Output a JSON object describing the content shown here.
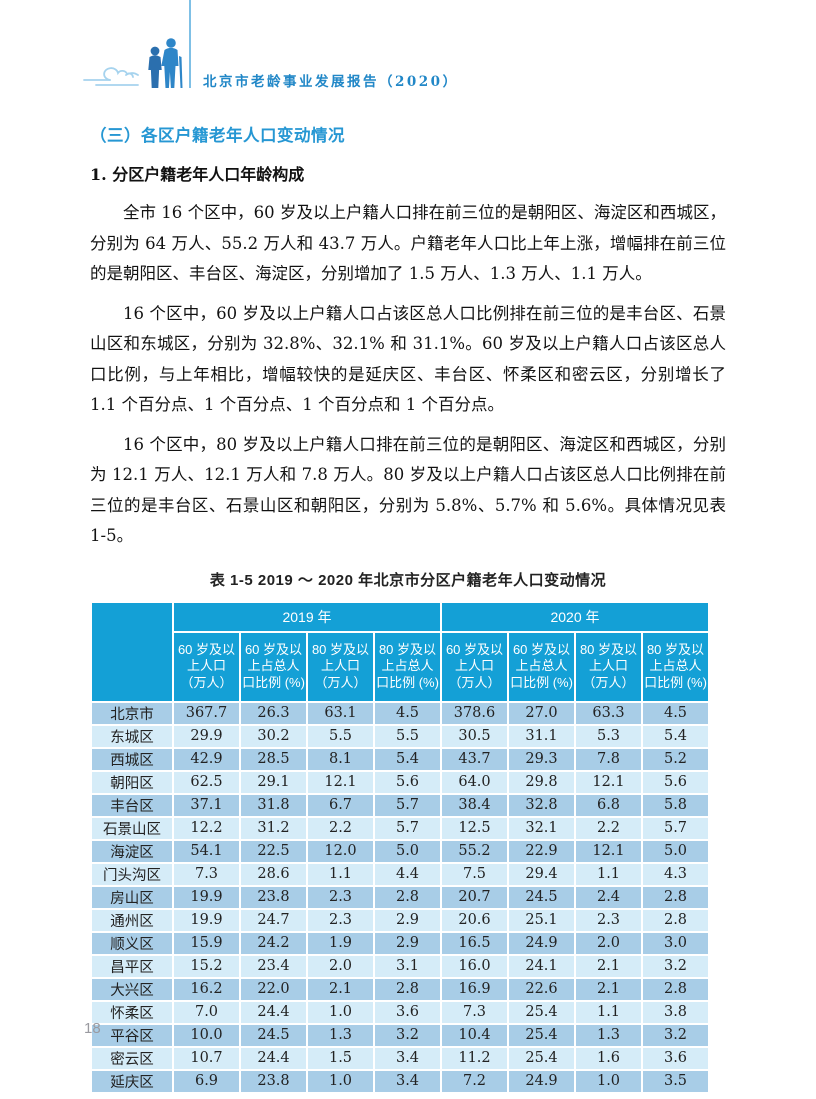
{
  "header": {
    "report_title": "北京市老龄事业发展报告（2020）"
  },
  "content": {
    "section_heading": "（三）各区户籍老年人口变动情况",
    "sub_heading": "1. 分区户籍老年人口年龄构成",
    "paragraphs": {
      "p1": "全市 16 个区中，60 岁及以上户籍人口排在前三位的是朝阳区、海淀区和西城区，分别为 64 万人、55.2 万人和 43.7 万人。户籍老年人口比上年上涨，增幅排在前三位的是朝阳区、丰台区、海淀区，分别增加了 1.5 万人、1.3 万人、1.1 万人。",
      "p2": "16 个区中，60 岁及以上户籍人口占该区总人口比例排在前三位的是丰台区、石景山区和东城区，分别为 32.8%、32.1% 和 31.1%。60 岁及以上户籍人口占该区总人口比例，与上年相比，增幅较快的是延庆区、丰台区、怀柔区和密云区，分别增长了 1.1 个百分点、1 个百分点、1 个百分点和 1 个百分点。",
      "p3": "16 个区中，80 岁及以上户籍人口排在前三位的是朝阳区、海淀区和西城区，分别为 12.1 万人、12.1 万人和 7.8 万人。80 岁及以上户籍人口占该区总人口比例排在前三位的是丰台区、石景山区和朝阳区，分别为 5.8%、5.7% 和 5.6%。具体情况见表 1-5。"
    }
  },
  "table": {
    "caption": "表 1-5  2019 ～ 2020 年北京市分区户籍老年人口变动情况",
    "year_groups": {
      "y2019": "2019 年",
      "y2020": "2020 年"
    },
    "sub_headers": [
      "60 岁及以上人口（万人）",
      "60 岁及以上占总人口比例 (%)",
      "80 岁及以上人口（万人）",
      "80 岁及以上占总人口比例 (%)"
    ],
    "rows": [
      {
        "name": "北京市",
        "values": [
          "367.7",
          "26.3",
          "63.1",
          "4.5",
          "378.6",
          "27.0",
          "63.3",
          "4.5"
        ]
      },
      {
        "name": "东城区",
        "values": [
          "29.9",
          "30.2",
          "5.5",
          "5.5",
          "30.5",
          "31.1",
          "5.3",
          "5.4"
        ]
      },
      {
        "name": "西城区",
        "values": [
          "42.9",
          "28.5",
          "8.1",
          "5.4",
          "43.7",
          "29.3",
          "7.8",
          "5.2"
        ]
      },
      {
        "name": "朝阳区",
        "values": [
          "62.5",
          "29.1",
          "12.1",
          "5.6",
          "64.0",
          "29.8",
          "12.1",
          "5.6"
        ]
      },
      {
        "name": "丰台区",
        "values": [
          "37.1",
          "31.8",
          "6.7",
          "5.7",
          "38.4",
          "32.8",
          "6.8",
          "5.8"
        ]
      },
      {
        "name": "石景山区",
        "values": [
          "12.2",
          "31.2",
          "2.2",
          "5.7",
          "12.5",
          "32.1",
          "2.2",
          "5.7"
        ]
      },
      {
        "name": "海淀区",
        "values": [
          "54.1",
          "22.5",
          "12.0",
          "5.0",
          "55.2",
          "22.9",
          "12.1",
          "5.0"
        ]
      },
      {
        "name": "门头沟区",
        "values": [
          "7.3",
          "28.6",
          "1.1",
          "4.4",
          "7.5",
          "29.4",
          "1.1",
          "4.3"
        ]
      },
      {
        "name": "房山区",
        "values": [
          "19.9",
          "23.8",
          "2.3",
          "2.8",
          "20.7",
          "24.5",
          "2.4",
          "2.8"
        ]
      },
      {
        "name": "通州区",
        "values": [
          "19.9",
          "24.7",
          "2.3",
          "2.9",
          "20.6",
          "25.1",
          "2.3",
          "2.8"
        ]
      },
      {
        "name": "顺义区",
        "values": [
          "15.9",
          "24.2",
          "1.9",
          "2.9",
          "16.5",
          "24.9",
          "2.0",
          "3.0"
        ]
      },
      {
        "name": "昌平区",
        "values": [
          "15.2",
          "23.4",
          "2.0",
          "3.1",
          "16.0",
          "24.1",
          "2.1",
          "3.2"
        ]
      },
      {
        "name": "大兴区",
        "values": [
          "16.2",
          "22.0",
          "2.1",
          "2.8",
          "16.9",
          "22.6",
          "2.1",
          "2.8"
        ]
      },
      {
        "name": "怀柔区",
        "values": [
          "7.0",
          "24.4",
          "1.0",
          "3.6",
          "7.3",
          "25.4",
          "1.1",
          "3.8"
        ]
      },
      {
        "name": "平谷区",
        "values": [
          "10.0",
          "24.5",
          "1.3",
          "3.2",
          "10.4",
          "25.4",
          "1.3",
          "3.2"
        ]
      },
      {
        "name": "密云区",
        "values": [
          "10.7",
          "24.4",
          "1.5",
          "3.4",
          "11.2",
          "25.4",
          "1.6",
          "3.6"
        ]
      },
      {
        "name": "延庆区",
        "values": [
          "6.9",
          "23.8",
          "1.0",
          "3.4",
          "7.2",
          "24.9",
          "1.0",
          "3.5"
        ]
      }
    ]
  },
  "footer": {
    "page_number": "18"
  },
  "colors": {
    "accent_blue": "#2187c7",
    "heading_blue": "#2697d3",
    "table_header_bg": "#14a0d6",
    "row_dark": "#a8cde7",
    "row_light": "#d5ecf8",
    "divider_blue": "#7fc0e6"
  }
}
